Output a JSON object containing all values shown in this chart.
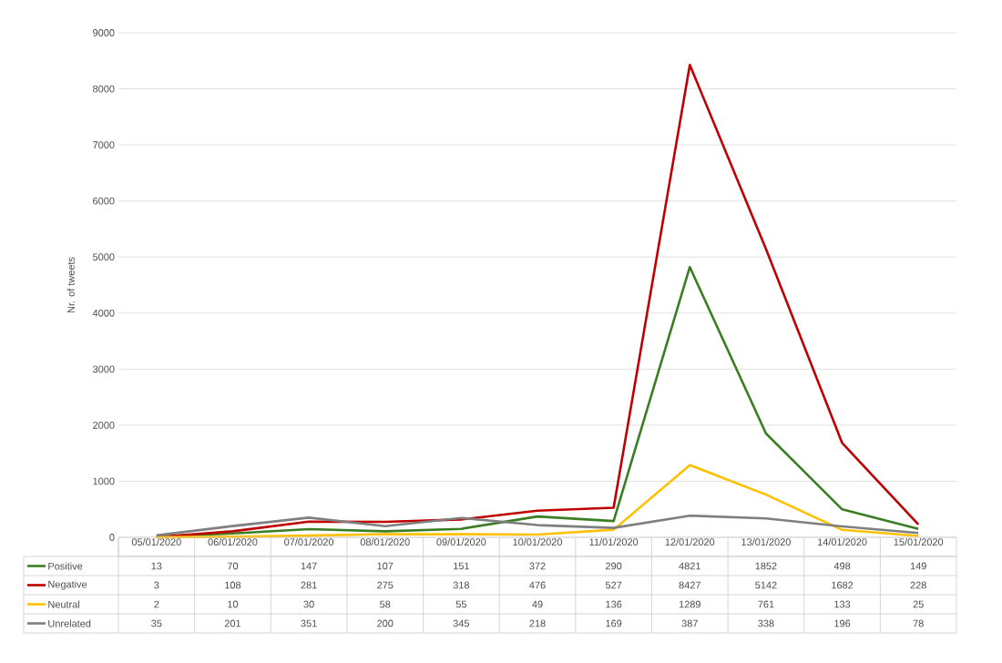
{
  "chart_data": {
    "type": "line",
    "ylabel": "Nr. of tweets",
    "categories": [
      "05/01/2020",
      "06/01/2020",
      "07/01/2020",
      "08/01/2020",
      "09/01/2020",
      "10/01/2020",
      "11/01/2020",
      "12/01/2020",
      "13/01/2020",
      "14/01/2020",
      "15/01/2020"
    ],
    "series": [
      {
        "name": "Positive",
        "color": "#3a7d22",
        "values": [
          13,
          70,
          147,
          107,
          151,
          372,
          290,
          4821,
          1852,
          498,
          149
        ]
      },
      {
        "name": "Negative",
        "color": "#c00000",
        "values": [
          3,
          108,
          281,
          275,
          318,
          476,
          527,
          8427,
          5142,
          1682,
          228
        ]
      },
      {
        "name": "Neutral",
        "color": "#ffc000",
        "values": [
          2,
          10,
          30,
          58,
          55,
          49,
          136,
          1289,
          761,
          133,
          25
        ]
      },
      {
        "name": "Unrelated",
        "color": "#7f7f7f",
        "values": [
          35,
          201,
          351,
          200,
          345,
          218,
          169,
          387,
          338,
          196,
          78
        ]
      }
    ],
    "ylim": [
      0,
      9000
    ],
    "yticks": [
      0,
      1000,
      2000,
      3000,
      4000,
      5000,
      6000,
      7000,
      8000,
      9000
    ],
    "grid": "y",
    "legend": "bottom",
    "data_labels": true,
    "marker": "none",
    "line_style": "solid"
  }
}
